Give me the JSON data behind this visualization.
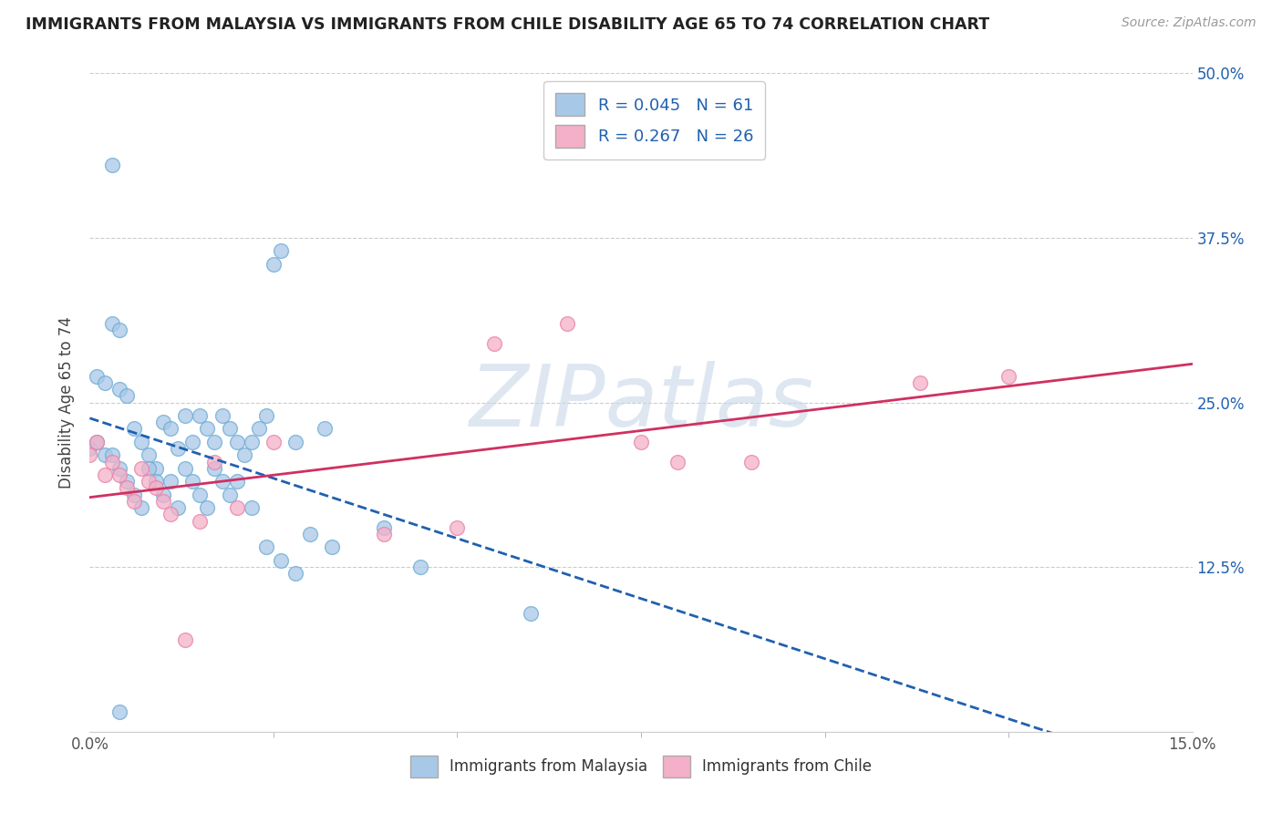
{
  "title": "IMMIGRANTS FROM MALAYSIA VS IMMIGRANTS FROM CHILE DISABILITY AGE 65 TO 74 CORRELATION CHART",
  "source": "Source: ZipAtlas.com",
  "ylabel": "Disability Age 65 to 74",
  "xlim": [
    0.0,
    0.15
  ],
  "ylim": [
    0.0,
    0.5
  ],
  "xticks": [
    0.0,
    0.15
  ],
  "xticklabels": [
    "0.0%",
    "15.0%"
  ],
  "xticks_minor": [
    0.025,
    0.05,
    0.075,
    0.1,
    0.125
  ],
  "yticks": [
    0.0,
    0.125,
    0.25,
    0.375,
    0.5
  ],
  "yticklabels_left": [
    "",
    "",
    "",
    "",
    ""
  ],
  "yticklabels_right": [
    "",
    "12.5%",
    "25.0%",
    "37.5%",
    "50.0%"
  ],
  "malaysia_color": "#a8c8e8",
  "malaysia_edge": "#6aaad4",
  "chile_color": "#f4b0c8",
  "chile_edge": "#e880a8",
  "trend_malaysia_color": "#2060b0",
  "trend_chile_color": "#d03060",
  "malaysia_R": 0.045,
  "malaysia_N": 61,
  "chile_R": 0.267,
  "chile_N": 26,
  "legend_label_malaysia": "Immigrants from Malaysia",
  "legend_label_chile": "Immigrants from Chile",
  "watermark": "ZIPatlas",
  "grid_color": "#cccccc",
  "title_color": "#222222",
  "source_color": "#999999",
  "tick_color": "#555555",
  "right_tick_color": "#2060b0",
  "malaysia_x": [
    0.003,
    0.012,
    0.001,
    0.002,
    0.004,
    0.005,
    0.006,
    0.007,
    0.008,
    0.009,
    0.01,
    0.011,
    0.013,
    0.014,
    0.015,
    0.016,
    0.017,
    0.018,
    0.019,
    0.02,
    0.021,
    0.022,
    0.023,
    0.024,
    0.025,
    0.026,
    0.028,
    0.003,
    0.004,
    0.032,
    0.0,
    0.001,
    0.002,
    0.003,
    0.004,
    0.005,
    0.006,
    0.007,
    0.008,
    0.009,
    0.01,
    0.011,
    0.012,
    0.013,
    0.014,
    0.015,
    0.016,
    0.017,
    0.018,
    0.019,
    0.02,
    0.022,
    0.024,
    0.026,
    0.028,
    0.03,
    0.033,
    0.004,
    0.04,
    0.045,
    0.06
  ],
  "malaysia_y": [
    0.43,
    0.215,
    0.27,
    0.265,
    0.26,
    0.255,
    0.23,
    0.22,
    0.21,
    0.2,
    0.235,
    0.23,
    0.24,
    0.22,
    0.24,
    0.23,
    0.22,
    0.24,
    0.23,
    0.22,
    0.21,
    0.22,
    0.23,
    0.24,
    0.355,
    0.365,
    0.22,
    0.31,
    0.305,
    0.23,
    0.215,
    0.22,
    0.21,
    0.21,
    0.2,
    0.19,
    0.18,
    0.17,
    0.2,
    0.19,
    0.18,
    0.19,
    0.17,
    0.2,
    0.19,
    0.18,
    0.17,
    0.2,
    0.19,
    0.18,
    0.19,
    0.17,
    0.14,
    0.13,
    0.12,
    0.15,
    0.14,
    0.015,
    0.155,
    0.125,
    0.09
  ],
  "chile_x": [
    0.0,
    0.001,
    0.002,
    0.003,
    0.004,
    0.005,
    0.006,
    0.007,
    0.008,
    0.009,
    0.01,
    0.011,
    0.013,
    0.015,
    0.017,
    0.02,
    0.025,
    0.04,
    0.05,
    0.055,
    0.065,
    0.075,
    0.08,
    0.09,
    0.113,
    0.125
  ],
  "chile_y": [
    0.21,
    0.22,
    0.195,
    0.205,
    0.195,
    0.185,
    0.175,
    0.2,
    0.19,
    0.185,
    0.175,
    0.165,
    0.07,
    0.16,
    0.205,
    0.17,
    0.22,
    0.15,
    0.155,
    0.295,
    0.31,
    0.22,
    0.205,
    0.205,
    0.265,
    0.27
  ]
}
